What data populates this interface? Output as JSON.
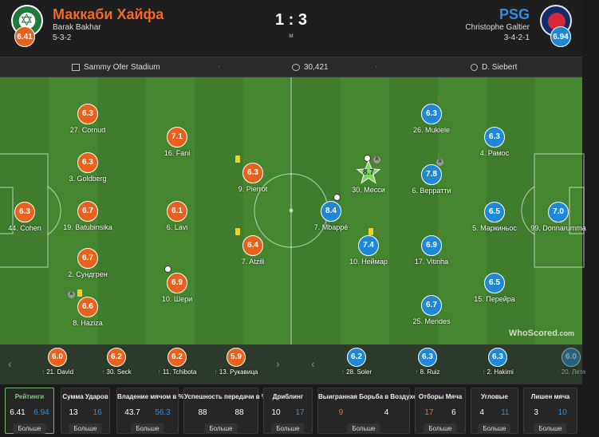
{
  "header": {
    "home": {
      "name": "Маккаби Хайфа",
      "manager": "Barak Bakhar",
      "formation": "5-3-2",
      "rating": "6.41",
      "color": "#ef6a2a"
    },
    "away": {
      "name": "PSG",
      "manager": "Christophe Galtier",
      "formation": "3-4-2-1",
      "rating": "6.94",
      "color": "#2d8fe0"
    },
    "score": "1 : 3",
    "status": "м"
  },
  "info": {
    "stadium": "Sammy Ofer Stadium",
    "attendance": "30,421",
    "referee": "D. Siebert"
  },
  "watermark": "WhoScored",
  "watermark_suffix": ".com",
  "home_players": [
    {
      "id": "p1",
      "rating": "6.3",
      "label": "44. Cohen"
    },
    {
      "id": "p2",
      "rating": "6.3",
      "label": "27. Cornud"
    },
    {
      "id": "p3",
      "rating": "6.3",
      "label": "3. Goldberg"
    },
    {
      "id": "p4",
      "rating": "6.7",
      "label": "19. Batubinsika"
    },
    {
      "id": "p5",
      "rating": "6.7",
      "label": "2. Сундгрен"
    },
    {
      "id": "p6",
      "rating": "6.6",
      "label": "8. Haziza"
    },
    {
      "id": "p7",
      "rating": "7.1",
      "label": "16. Fani"
    },
    {
      "id": "p8",
      "rating": "6.1",
      "label": "6. Lavi"
    },
    {
      "id": "p9",
      "rating": "6.9",
      "label": "10. Шери"
    },
    {
      "id": "p10",
      "rating": "6.3",
      "label": "9. Pierrot"
    },
    {
      "id": "p11",
      "rating": "6.4",
      "label": "7. Atzili"
    }
  ],
  "away_players": [
    {
      "id": "a1",
      "rating": "7.0",
      "label": "99. Donnarumma"
    },
    {
      "id": "a2",
      "rating": "6.3",
      "label": "4. Рамос"
    },
    {
      "id": "a3",
      "rating": "6.5",
      "label": "5. Маркиньос"
    },
    {
      "id": "a4",
      "rating": "6.5",
      "label": "15. Перейра"
    },
    {
      "id": "a5",
      "rating": "6.3",
      "label": "26. Mukiele"
    },
    {
      "id": "a6",
      "rating": "7.8",
      "label": "6. Верратти"
    },
    {
      "id": "a7",
      "rating": "6.9",
      "label": "17. Vitinha"
    },
    {
      "id": "a8",
      "rating": "6.7",
      "label": "25. Mendes"
    },
    {
      "id": "a9",
      "rating": "8.7",
      "label": "30. Месси"
    },
    {
      "id": "a10",
      "rating": "8.4",
      "label": "7. Mbappé"
    },
    {
      "id": "a11",
      "rating": "7.4",
      "label": "10. Неймар"
    }
  ],
  "subs": [
    {
      "rating": "6.0",
      "label": "21. David",
      "team": "home"
    },
    {
      "rating": "6.2",
      "label": "30. Seck",
      "team": "home"
    },
    {
      "rating": "6.2",
      "label": "11. Tchibota",
      "team": "home"
    },
    {
      "rating": "5.9",
      "label": "13. Рукавица",
      "team": "home"
    },
    {
      "rating": "6.2",
      "label": "28. Soler",
      "team": "away"
    },
    {
      "rating": "6.3",
      "label": "8. Ruiz",
      "team": "away"
    },
    {
      "rating": "6.3",
      "label": "2. Hakimi",
      "team": "away"
    },
    {
      "rating": "6.0",
      "label": "20. Лете",
      "team": "away"
    }
  ],
  "stats": [
    {
      "label": "Рейтинги",
      "home": "6.41",
      "away": "6.94",
      "button": "Больше"
    },
    {
      "label": "Сумма Ударов",
      "home": "13",
      "away": "16",
      "button": "Больше"
    },
    {
      "label": "Владение мячом в %",
      "home": "43.7",
      "away": "56.3",
      "button": "Больше"
    },
    {
      "label": "Успешность передачи в %",
      "home": "88",
      "away": "88",
      "button": "Больше"
    },
    {
      "label": "Дриблинг",
      "home": "10",
      "away": "17",
      "button": "Больше"
    },
    {
      "label": "Выигранная Борьба в Воздухе",
      "home": "9",
      "away": "4",
      "button": "Больше"
    },
    {
      "label": "Отборы Мяча",
      "home": "17",
      "away": "6",
      "button": "Больше"
    },
    {
      "label": "Угловые",
      "home": "4",
      "away": "11",
      "button": "Больше"
    },
    {
      "label": "Лишен мяча",
      "home": "3",
      "away": "10",
      "button": "Больше"
    }
  ],
  "icons": {
    "subs_prev": "chevron-left-icon",
    "subs_next": "chevron-right-icon",
    "stadium": "stadium-icon",
    "attendance": "crowd-icon",
    "referee": "whistle-icon"
  }
}
